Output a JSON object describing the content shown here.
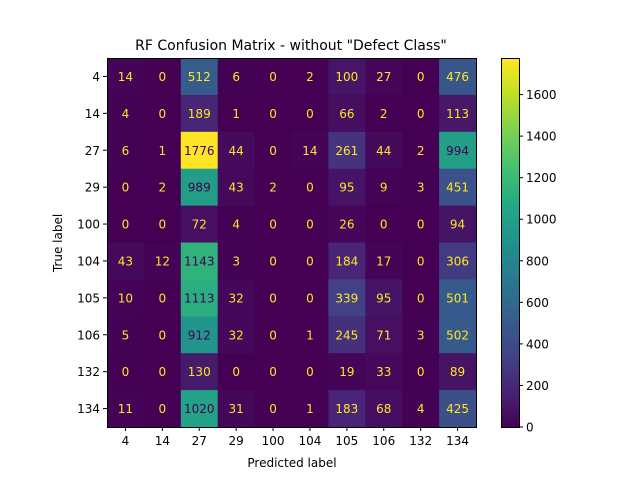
{
  "chart_data": {
    "type": "heatmap",
    "title": "RF Confusion Matrix - without \"Defect Class\"",
    "xlabel": "Predicted label",
    "ylabel": "True label",
    "x_categories": [
      "4",
      "14",
      "27",
      "29",
      "100",
      "104",
      "105",
      "106",
      "132",
      "134"
    ],
    "y_categories": [
      "4",
      "14",
      "27",
      "29",
      "100",
      "104",
      "105",
      "106",
      "132",
      "134"
    ],
    "values": [
      [
        14,
        0,
        512,
        6,
        0,
        2,
        100,
        27,
        0,
        476
      ],
      [
        4,
        0,
        189,
        1,
        0,
        0,
        66,
        2,
        0,
        113
      ],
      [
        6,
        1,
        1776,
        44,
        0,
        14,
        261,
        44,
        2,
        994
      ],
      [
        0,
        2,
        989,
        43,
        2,
        0,
        95,
        9,
        3,
        451
      ],
      [
        0,
        0,
        72,
        4,
        0,
        0,
        26,
        0,
        0,
        94
      ],
      [
        43,
        12,
        1143,
        3,
        0,
        0,
        184,
        17,
        0,
        306
      ],
      [
        10,
        0,
        1113,
        32,
        0,
        0,
        339,
        95,
        0,
        501
      ],
      [
        5,
        0,
        912,
        32,
        0,
        1,
        245,
        71,
        3,
        502
      ],
      [
        0,
        0,
        130,
        0,
        0,
        0,
        19,
        33,
        0,
        89
      ],
      [
        11,
        0,
        1020,
        31,
        0,
        1,
        183,
        68,
        4,
        425
      ]
    ],
    "colormap": "viridis",
    "colorbar": {
      "range": [
        0,
        1776
      ],
      "ticks": [
        0,
        200,
        400,
        600,
        800,
        1000,
        1200,
        1400,
        1600
      ]
    },
    "text_colors": {
      "on_dark": "#fde725",
      "on_light": "#440154"
    }
  }
}
